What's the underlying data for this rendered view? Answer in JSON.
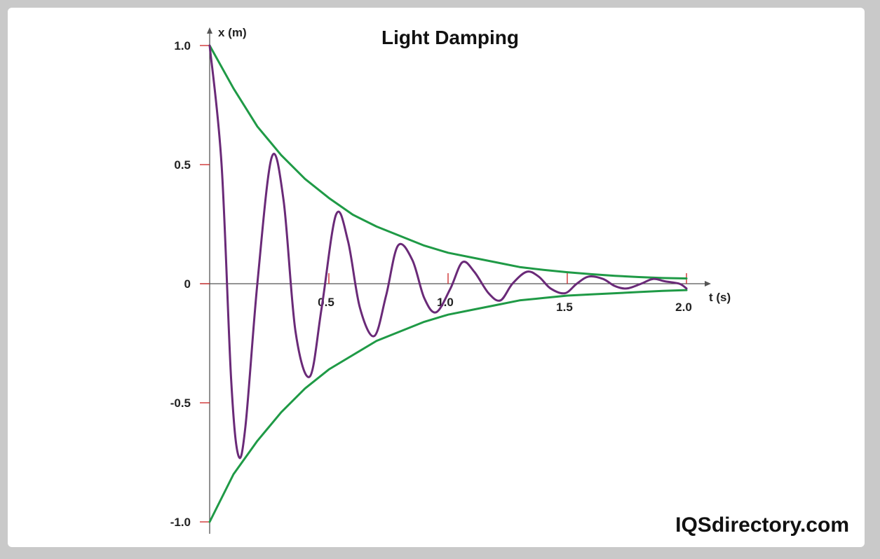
{
  "chart_data": {
    "type": "line",
    "title": "Light Damping",
    "xlabel": "t (s)",
    "ylabel": "x (m)",
    "xlim": [
      0,
      2.0
    ],
    "ylim": [
      -1.0,
      1.0
    ],
    "x_ticks": [
      {
        "value": 0.5,
        "label": "0.5"
      },
      {
        "value": 1.0,
        "label": "1.0"
      },
      {
        "value": 1.5,
        "label": "1.5"
      },
      {
        "value": 2.0,
        "label": "2.0"
      }
    ],
    "y_ticks": [
      {
        "value": 1.0,
        "label": "1.0"
      },
      {
        "value": 0.5,
        "label": "0.5"
      },
      {
        "value": 0,
        "label": "0"
      },
      {
        "value": -0.5,
        "label": "-0.5"
      },
      {
        "value": -1.0,
        "label": "-1.0"
      }
    ],
    "grid": false,
    "series": [
      {
        "role": "oscillation",
        "color": "#6a2a78",
        "x": [
          0,
          0.05,
          0.09,
          0.12,
          0.15,
          0.2,
          0.26,
          0.31,
          0.36,
          0.42,
          0.47,
          0.53,
          0.58,
          0.63,
          0.69,
          0.74,
          0.79,
          0.85,
          0.9,
          0.95,
          1.01,
          1.06,
          1.11,
          1.17,
          1.22,
          1.27,
          1.33,
          1.38,
          1.43,
          1.49,
          1.54,
          1.59,
          1.65,
          1.7,
          1.75,
          1.81,
          1.86,
          1.91,
          1.97,
          2.0
        ],
        "y": [
          1.0,
          0.5,
          -0.4,
          -0.72,
          -0.6,
          0.0,
          0.53,
          0.35,
          -0.2,
          -0.39,
          -0.1,
          0.29,
          0.18,
          -0.1,
          -0.22,
          -0.05,
          0.16,
          0.1,
          -0.06,
          -0.12,
          -0.02,
          0.09,
          0.05,
          -0.04,
          -0.07,
          0.0,
          0.05,
          0.03,
          -0.02,
          -0.04,
          0.0,
          0.03,
          0.02,
          -0.01,
          -0.02,
          0.0,
          0.02,
          0.01,
          0.0,
          -0.02
        ]
      },
      {
        "role": "upper-envelope",
        "color": "#1f9a46",
        "x": [
          0,
          0.1,
          0.2,
          0.3,
          0.4,
          0.5,
          0.6,
          0.7,
          0.8,
          0.9,
          1.0,
          1.1,
          1.2,
          1.3,
          1.4,
          1.5,
          1.6,
          1.7,
          1.8,
          1.9,
          2.0
        ],
        "y": [
          1.0,
          0.82,
          0.66,
          0.54,
          0.44,
          0.36,
          0.29,
          0.24,
          0.2,
          0.16,
          0.13,
          0.11,
          0.09,
          0.07,
          0.058,
          0.048,
          0.04,
          0.033,
          0.028,
          0.024,
          0.022
        ]
      },
      {
        "role": "lower-envelope",
        "color": "#1f9a46",
        "x": [
          0,
          0.1,
          0.2,
          0.3,
          0.4,
          0.5,
          0.6,
          0.7,
          0.8,
          0.9,
          1.0,
          1.1,
          1.2,
          1.3,
          1.4,
          1.5,
          1.6,
          1.7,
          1.8,
          1.9,
          2.0
        ],
        "y": [
          -1.0,
          -0.8,
          -0.66,
          -0.54,
          -0.44,
          -0.36,
          -0.3,
          -0.24,
          -0.2,
          -0.16,
          -0.13,
          -0.11,
          -0.09,
          -0.07,
          -0.06,
          -0.05,
          -0.045,
          -0.04,
          -0.035,
          -0.03,
          -0.027
        ]
      }
    ]
  },
  "branding": {
    "text": "IQSdirectory.com"
  },
  "colors": {
    "axis": "#555555",
    "tick": "#cc2222",
    "oscillation": "#6a2a78",
    "envelope": "#1f9a46"
  }
}
